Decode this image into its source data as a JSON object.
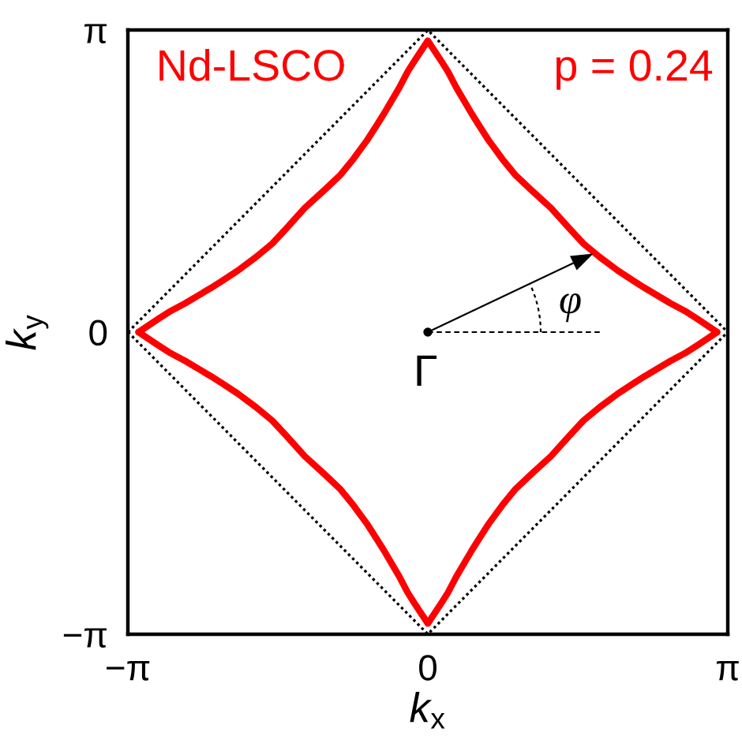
{
  "chart_data": {
    "type": "line",
    "xlabel": "k$_{x}$",
    "ylabel": "k$_{y}$",
    "xlim": [
      -3.1416,
      3.1416
    ],
    "ylim": [
      -3.1416,
      3.1416
    ],
    "xticks": [
      {
        "value": -3.1416,
        "label": "−π"
      },
      0,
      {
        "value": 3.1416,
        "label": "π"
      }
    ],
    "yticks": [
      {
        "value": -3.1416,
        "label": "−π"
      },
      0,
      {
        "value": 3.1416,
        "label": "π"
      }
    ],
    "series": [
      {
        "color": "#000000",
        "line_style": "dotted",
        "x": [
          -3.14,
          0,
          3.14
        ],
        "values": [
          0,
          3.14,
          0
        ]
      },
      {
        "color": "#000000",
        "line_style": "dotted",
        "x": [
          -3.14,
          0,
          3.14
        ],
        "values": [
          0,
          -3.14,
          0
        ]
      },
      {
        "color": "#ff0000",
        "line_style": "solid",
        "x": [
          -3.03,
          -2.82,
          -2.71,
          -2.54,
          -2.27,
          -2.16,
          -1.99,
          -1.8,
          -1.63,
          -1.48,
          -1.29,
          -1.08,
          -0.92,
          -0.78,
          -0.64,
          -0.53,
          -0.46,
          -0.3,
          -0.21,
          -0.14,
          0,
          0.14,
          0.21,
          0.3,
          0.46,
          0.53,
          0.64,
          0.78,
          0.92,
          1.08,
          1.29,
          1.48,
          1.63,
          1.8,
          1.99,
          2.16,
          2.27,
          2.54,
          2.71,
          2.82,
          3.03
        ],
        "values": [
          0,
          0.14,
          0.21,
          0.3,
          0.46,
          0.53,
          0.64,
          0.78,
          0.92,
          1.08,
          1.29,
          1.48,
          1.63,
          1.8,
          1.99,
          2.16,
          2.27,
          2.54,
          2.71,
          2.82,
          3.03,
          2.82,
          2.71,
          2.54,
          2.27,
          2.16,
          1.99,
          1.8,
          1.63,
          1.48,
          1.29,
          1.08,
          0.92,
          0.78,
          0.64,
          0.53,
          0.46,
          0.3,
          0.21,
          0.14,
          0
        ]
      },
      {
        "color": "#ff0000",
        "line_style": "solid",
        "x": [
          -3.03,
          -2.82,
          -2.71,
          -2.54,
          -2.27,
          -2.16,
          -1.99,
          -1.8,
          -1.63,
          -1.48,
          -1.29,
          -1.08,
          -0.92,
          -0.78,
          -0.64,
          -0.53,
          -0.46,
          -0.3,
          -0.21,
          -0.14,
          0,
          0.14,
          0.21,
          0.3,
          0.46,
          0.53,
          0.64,
          0.78,
          0.92,
          1.08,
          1.29,
          1.48,
          1.63,
          1.8,
          1.99,
          2.16,
          2.27,
          2.54,
          2.71,
          2.82,
          3.03
        ],
        "values": [
          0,
          -0.14,
          -0.21,
          -0.3,
          -0.46,
          -0.53,
          -0.64,
          -0.78,
          -0.92,
          -1.08,
          -1.29,
          -1.48,
          -1.63,
          -1.8,
          -1.99,
          -2.16,
          -2.27,
          -2.54,
          -2.71,
          -2.82,
          -3.03,
          -2.82,
          -2.71,
          -2.54,
          -2.27,
          -2.16,
          -1.99,
          -1.8,
          -1.63,
          -1.48,
          -1.29,
          -1.08,
          -0.92,
          -0.78,
          -0.64,
          -0.53,
          -0.46,
          -0.3,
          -0.21,
          -0.14,
          0
        ]
      }
    ],
    "annotations": [
      "Nd-LSCO",
      "p = 0.24",
      {
        "text": "Γ",
        "x": 0,
        "y": 0
      },
      "φ"
    ]
  }
}
